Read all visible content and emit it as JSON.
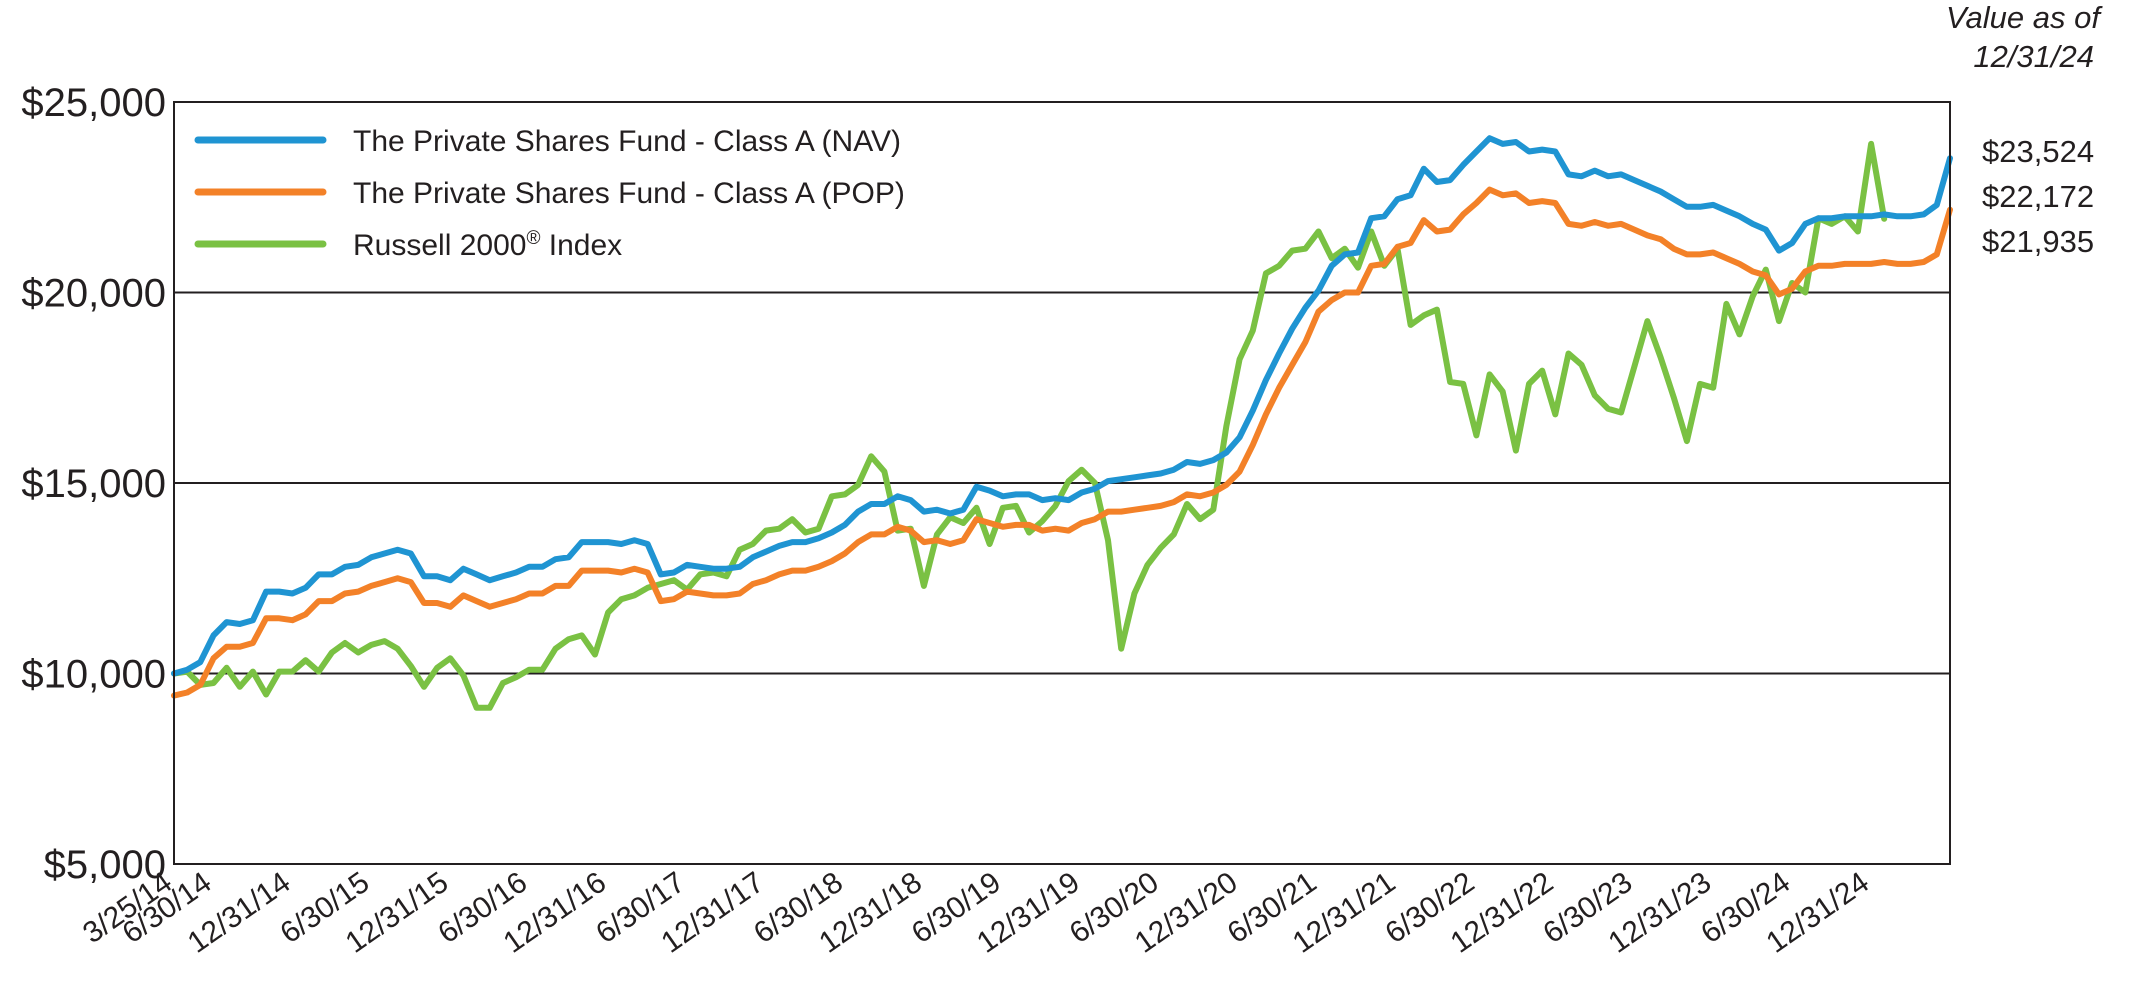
{
  "chart_data": {
    "type": "line",
    "title": "",
    "header_note": [
      "Value as of",
      "12/31/24"
    ],
    "xlabel": "",
    "ylabel": "",
    "ylim": [
      5000,
      25000
    ],
    "y_ticks": [
      5000,
      10000,
      15000,
      20000,
      25000
    ],
    "y_tick_labels": [
      "$5,000",
      "$10,000",
      "$15,000",
      "$20,000",
      "$25,000"
    ],
    "grid": "horizontal",
    "legend_position": "top-left",
    "x_tick_labels": [
      "3/25/14",
      "6/30/14",
      "12/31/14",
      "6/30/15",
      "12/31/15",
      "6/30/16",
      "12/31/16",
      "6/30/17",
      "12/31/17",
      "6/30/18",
      "12/31/18",
      "6/30/19",
      "12/31/19",
      "6/30/20",
      "12/31/20",
      "6/30/21",
      "12/31/21",
      "6/30/22",
      "12/31/22",
      "6/30/23",
      "12/31/23",
      "6/30/24",
      "12/31/24"
    ],
    "x_tick_index": [
      0,
      3,
      9,
      15,
      21,
      27,
      33,
      39,
      45,
      51,
      57,
      63,
      69,
      75,
      81,
      87,
      93,
      99,
      105,
      111,
      117,
      123,
      129
    ],
    "series": [
      {
        "name": "The Private Shares Fund - Class A (NAV)",
        "color": "#1f94d2",
        "end_label": "$23,524",
        "values": [
          10000,
          10100,
          10300,
          11000,
          11350,
          11300,
          11400,
          12150,
          12150,
          12100,
          12250,
          12600,
          12600,
          12800,
          12850,
          13050,
          13150,
          13250,
          13150,
          12550,
          12550,
          12450,
          12750,
          12600,
          12450,
          12550,
          12650,
          12800,
          12800,
          13000,
          13050,
          13450,
          13450,
          13450,
          13400,
          13500,
          13400,
          12600,
          12650,
          12850,
          12800,
          12750,
          12750,
          12800,
          13050,
          13200,
          13350,
          13450,
          13450,
          13550,
          13700,
          13900,
          14250,
          14450,
          14450,
          14650,
          14550,
          14250,
          14300,
          14200,
          14300,
          14900,
          14800,
          14650,
          14700,
          14700,
          14550,
          14600,
          14550,
          14750,
          14850,
          15050,
          15100,
          15150,
          15200,
          15250,
          15350,
          15550,
          15500,
          15600,
          15800,
          16200,
          16900,
          17700,
          18400,
          19050,
          19600,
          20050,
          20700,
          21000,
          21050,
          21950,
          22000,
          22450,
          22550,
          23250,
          22900,
          22950,
          23350,
          23700,
          24050,
          23900,
          23950,
          23700,
          23750,
          23700,
          23100,
          23050,
          23200,
          23050,
          23100,
          22950,
          22800,
          22650,
          22450,
          22250,
          22250,
          22300,
          22150,
          22000,
          21800,
          21650,
          21100,
          21300,
          21800,
          21950,
          21950,
          22000,
          22000,
          22000,
          22050,
          22000,
          22000,
          22050,
          22300,
          23524
        ]
      },
      {
        "name": "The Private Shares Fund - Class A (POP)",
        "color": "#f38128",
        "end_label": "$22,172",
        "values": [
          9420,
          9500,
          9700,
          10400,
          10700,
          10700,
          10800,
          11450,
          11450,
          11400,
          11550,
          11900,
          11900,
          12100,
          12150,
          12300,
          12400,
          12500,
          12400,
          11850,
          11850,
          11750,
          12050,
          11900,
          11750,
          11850,
          11950,
          12100,
          12100,
          12300,
          12300,
          12700,
          12700,
          12700,
          12650,
          12750,
          12650,
          11900,
          11950,
          12150,
          12100,
          12050,
          12050,
          12100,
          12350,
          12450,
          12600,
          12700,
          12700,
          12800,
          12950,
          13150,
          13450,
          13650,
          13650,
          13850,
          13750,
          13450,
          13500,
          13400,
          13500,
          14050,
          13950,
          13850,
          13900,
          13900,
          13750,
          13800,
          13750,
          13950,
          14050,
          14250,
          14250,
          14300,
          14350,
          14400,
          14500,
          14700,
          14650,
          14750,
          14950,
          15300,
          16000,
          16800,
          17500,
          18100,
          18700,
          19500,
          19800,
          20000,
          20000,
          20700,
          20750,
          21200,
          21300,
          21900,
          21600,
          21650,
          22050,
          22350,
          22700,
          22550,
          22600,
          22350,
          22400,
          22350,
          21800,
          21750,
          21850,
          21750,
          21800,
          21650,
          21500,
          21400,
          21150,
          21000,
          21000,
          21050,
          20900,
          20750,
          20550,
          20450,
          19950,
          20100,
          20550,
          20700,
          20700,
          20750,
          20750,
          20750,
          20800,
          20750,
          20750,
          20800,
          21000,
          22172
        ]
      },
      {
        "name": "Russell 2000® Index",
        "name_base": "Russell 2000",
        "name_sup": "®",
        "name_suffix": " Index",
        "color": "#7ac143",
        "end_label": "$21,935",
        "values": [
          10000,
          10050,
          9700,
          9750,
          10150,
          9650,
          10050,
          9450,
          10050,
          10050,
          10350,
          10050,
          10550,
          10800,
          10550,
          10750,
          10850,
          10650,
          10200,
          9650,
          10150,
          10400,
          9950,
          9100,
          9100,
          9750,
          9900,
          10100,
          10100,
          10650,
          10900,
          11000,
          10500,
          11600,
          11950,
          12050,
          12250,
          12350,
          12450,
          12200,
          12600,
          12650,
          12550,
          13250,
          13400,
          13750,
          13800,
          14050,
          13700,
          13800,
          14650,
          14700,
          14950,
          15700,
          15300,
          13750,
          13800,
          12300,
          13650,
          14100,
          13950,
          14350,
          13400,
          14350,
          14400,
          13700,
          14000,
          14400,
          15050,
          15350,
          15000,
          13500,
          10650,
          12100,
          12850,
          13300,
          13650,
          14450,
          14050,
          14300,
          16500,
          18250,
          19000,
          20500,
          20700,
          21100,
          21150,
          21600,
          20900,
          21150,
          20650,
          21600,
          20700,
          21150,
          19150,
          19400,
          19550,
          17650,
          17600,
          16250,
          17850,
          17400,
          15850,
          17600,
          17950,
          16800,
          18400,
          18100,
          17300,
          16950,
          16850,
          18050,
          19250,
          18300,
          17250,
          16100,
          17600,
          17500,
          19700,
          18900,
          19900,
          20600,
          19250,
          20250,
          20000,
          21950,
          21800,
          22000,
          21600,
          23900,
          21935
        ]
      }
    ]
  }
}
